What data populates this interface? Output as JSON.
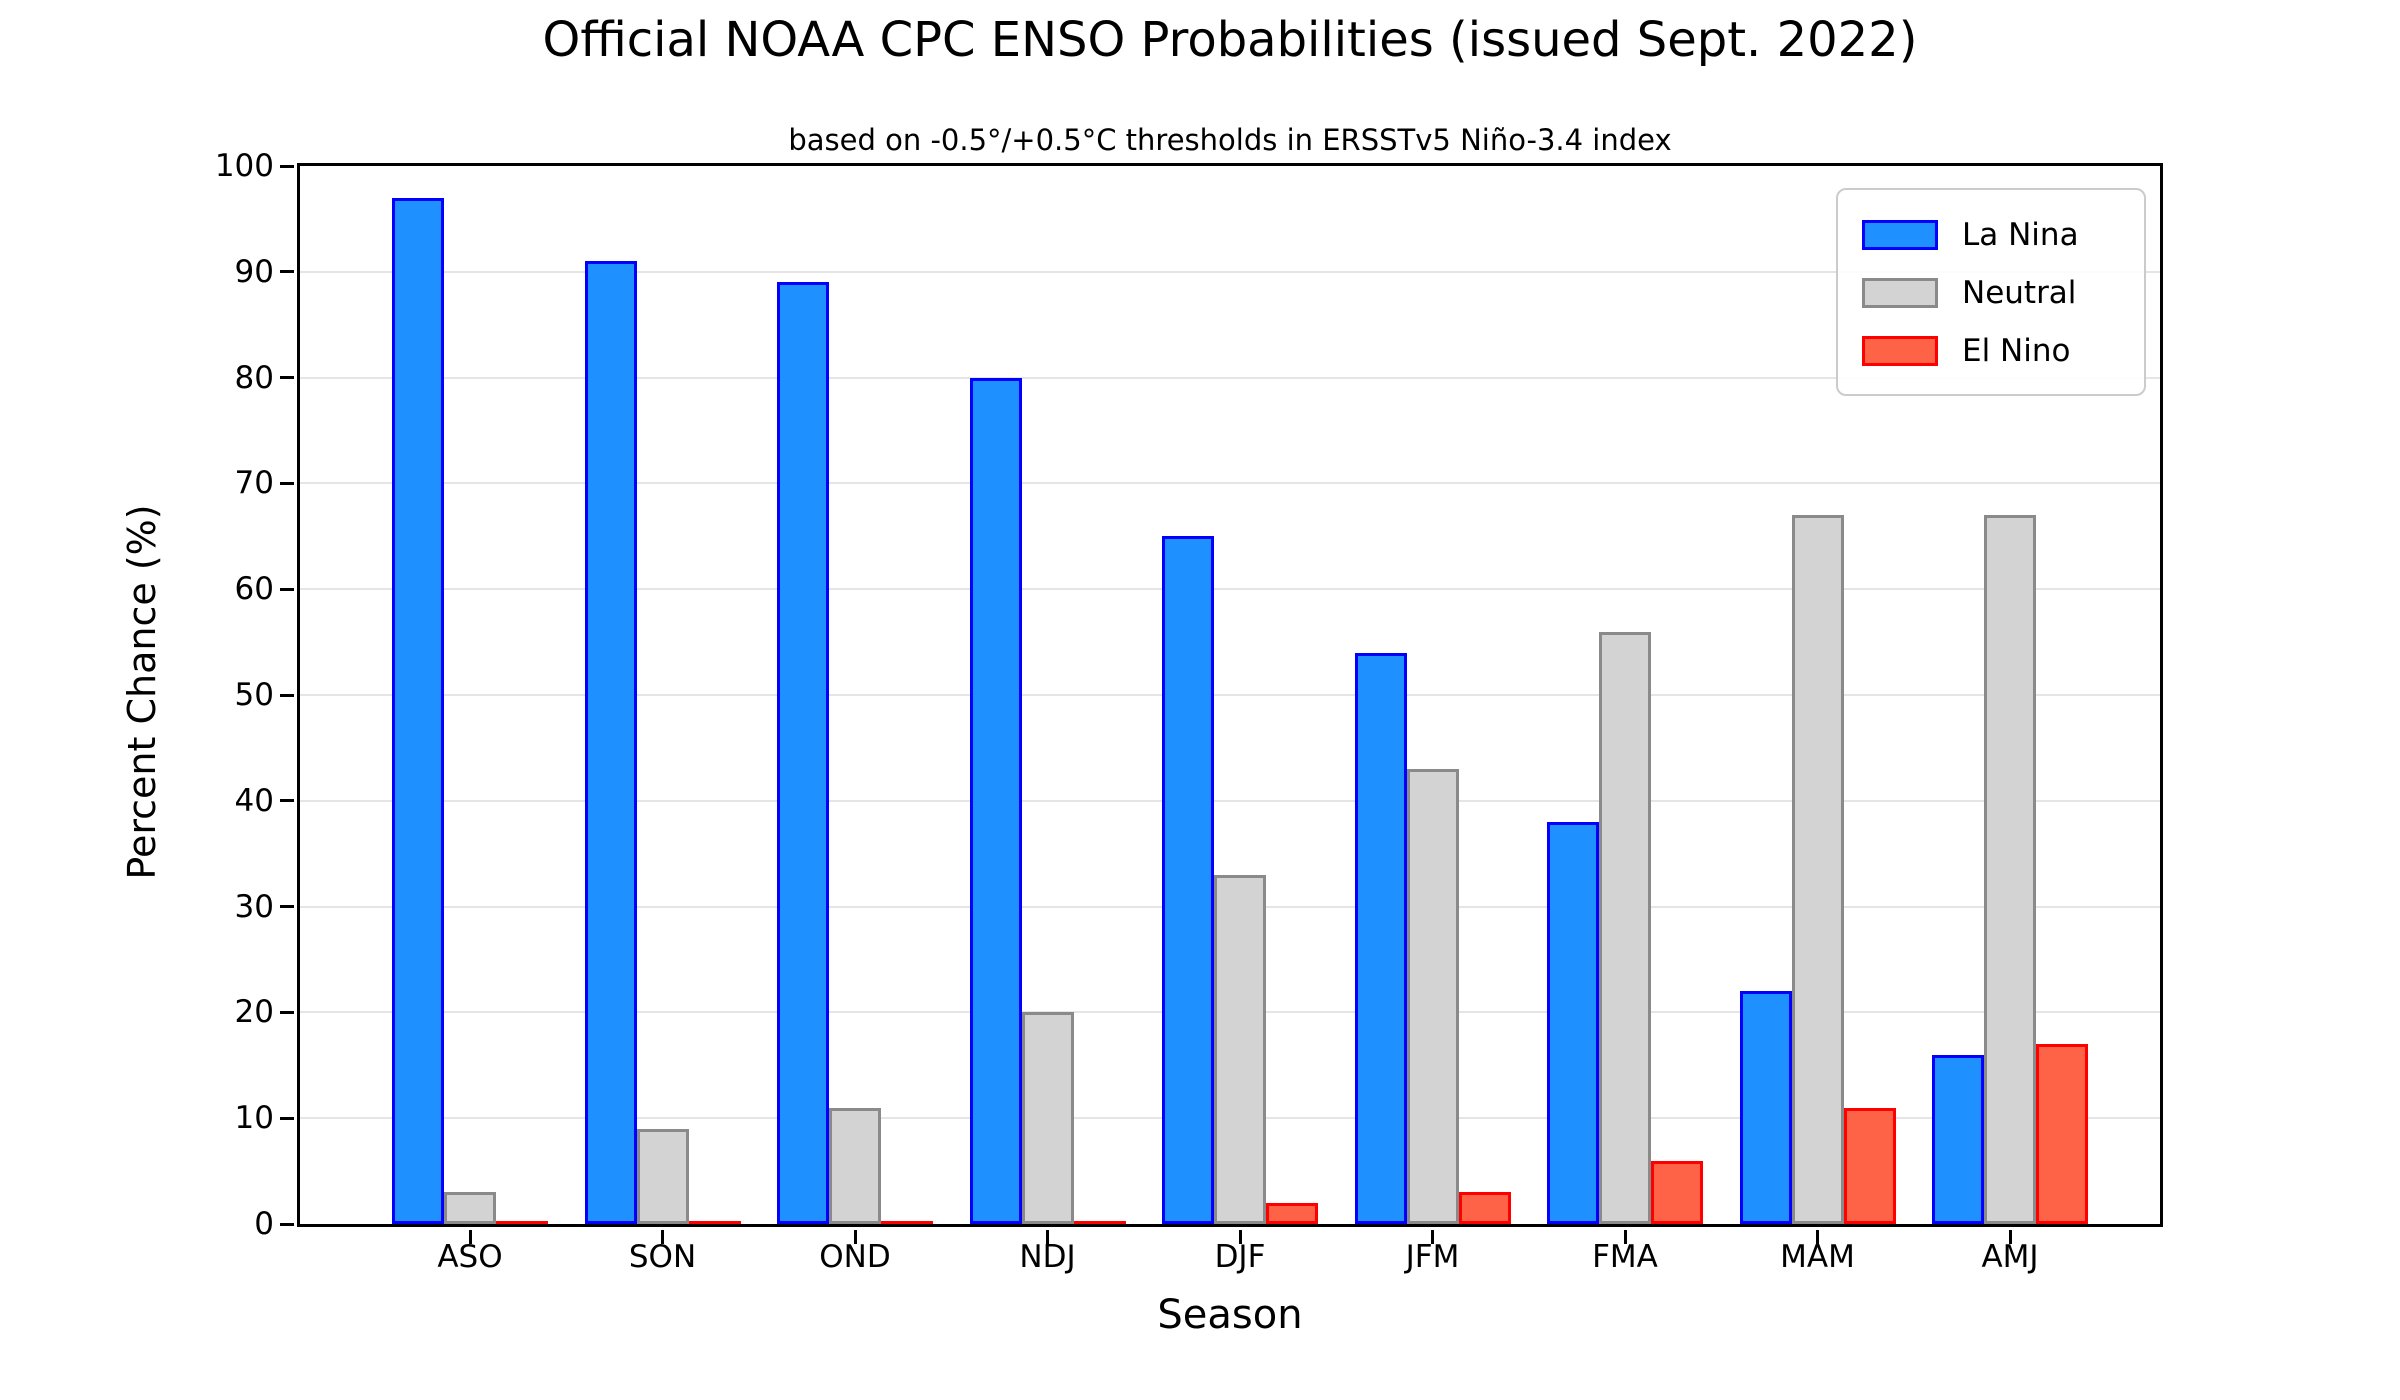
{
  "chart_data": {
    "type": "bar",
    "title": "Official NOAA CPC ENSO Probabilities (issued Sept. 2022)",
    "subtitle": "based on -0.5°/+0.5°C thresholds in ERSSTv5 Niño-3.4 index",
    "xlabel": "Season",
    "ylabel": "Percent Chance (%)",
    "categories": [
      "ASO",
      "SON",
      "OND",
      "NDJ",
      "DJF",
      "JFM",
      "FMA",
      "MAM",
      "AMJ"
    ],
    "series": [
      {
        "name": "La Nina",
        "fill": "#1E90FF",
        "edge": "#0000FF",
        "values": [
          97,
          91,
          89,
          80,
          65,
          54,
          38,
          22,
          16
        ]
      },
      {
        "name": "Neutral",
        "fill": "#D3D3D3",
        "edge": "#8A8A8A",
        "values": [
          3,
          9,
          11,
          20,
          33,
          43,
          56,
          67,
          67
        ]
      },
      {
        "name": "El Nino",
        "fill": "#FF6347",
        "edge": "#FF0000",
        "values": [
          0,
          0,
          0,
          0,
          2,
          3,
          6,
          11,
          17
        ]
      }
    ],
    "ylim": [
      0,
      100
    ],
    "yticks": [
      0,
      10,
      20,
      30,
      40,
      50,
      60,
      70,
      80,
      90,
      100
    ],
    "grid": "horizontal",
    "legend_position": "top-right",
    "gridline_color": "#e5e5e5"
  }
}
